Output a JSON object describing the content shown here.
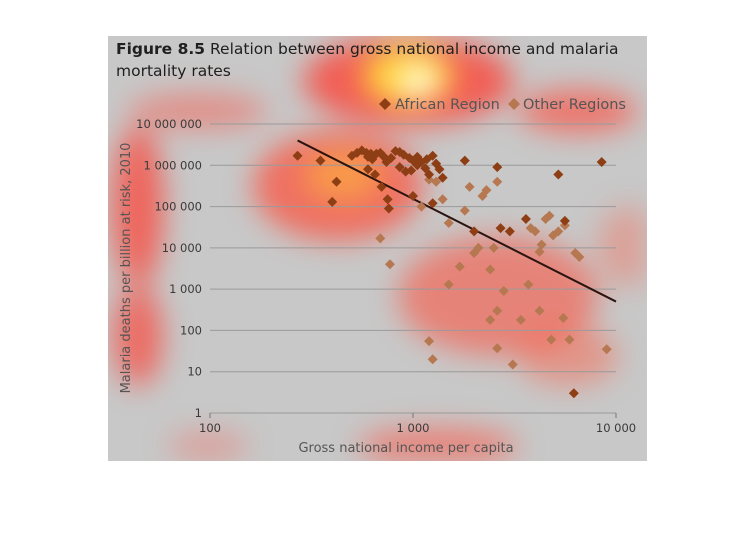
{
  "figure": {
    "label": "Figure 8.5",
    "title": "Relation between gross national income and malaria mortality rates"
  },
  "colors": {
    "african": "#8e3e14",
    "other": "#b67850",
    "trendline": "#2b1410",
    "panel_bg": "#c8c8c8"
  },
  "chart_data": {
    "type": "scatter",
    "xlabel": "Gross national income per capita",
    "ylabel": "Malaria deaths per billion at risk, 2010",
    "xscale": "log",
    "yscale": "log",
    "xlim": [
      100,
      10000
    ],
    "ylim": [
      1,
      10000000
    ],
    "x_ticks": [
      {
        "value": 100,
        "label": "100"
      },
      {
        "value": 1000,
        "label": "1 000"
      },
      {
        "value": 10000,
        "label": "10 000"
      }
    ],
    "y_ticks": [
      {
        "value": 1,
        "label": "1"
      },
      {
        "value": 10,
        "label": "10"
      },
      {
        "value": 100,
        "label": "100"
      },
      {
        "value": 1000,
        "label": "1 000"
      },
      {
        "value": 10000,
        "label": "10 000"
      },
      {
        "value": 100000,
        "label": "100 000"
      },
      {
        "value": 1000000,
        "label": "1 000 000"
      },
      {
        "value": 10000000,
        "label": "10 000 000"
      }
    ],
    "grid": "horizontal",
    "legend_position": "top-right",
    "trendline": {
      "x": [
        270,
        10000
      ],
      "y": [
        4000000,
        500
      ]
    },
    "series": [
      {
        "name": "African Region",
        "points": [
          [
            270,
            1700000
          ],
          [
            350,
            1300000
          ],
          [
            420,
            400000
          ],
          [
            400,
            130000
          ],
          [
            500,
            1700000
          ],
          [
            530,
            2000000
          ],
          [
            560,
            2300000
          ],
          [
            590,
            2000000
          ],
          [
            620,
            1900000
          ],
          [
            600,
            1600000
          ],
          [
            630,
            1400000
          ],
          [
            660,
            1900000
          ],
          [
            690,
            2000000
          ],
          [
            720,
            1600000
          ],
          [
            740,
            1200000
          ],
          [
            780,
            1500000
          ],
          [
            820,
            2200000
          ],
          [
            860,
            2100000
          ],
          [
            900,
            1800000
          ],
          [
            960,
            1500000
          ],
          [
            1000,
            1300000
          ],
          [
            1050,
            1600000
          ],
          [
            1100,
            1200000
          ],
          [
            1170,
            1400000
          ],
          [
            1250,
            1700000
          ],
          [
            1300,
            1100000
          ],
          [
            1350,
            800000
          ],
          [
            600,
            800000
          ],
          [
            650,
            600000
          ],
          [
            700,
            300000
          ],
          [
            750,
            150000
          ],
          [
            760,
            90000
          ],
          [
            860,
            900000
          ],
          [
            920,
            700000
          ],
          [
            980,
            750000
          ],
          [
            1050,
            1000000
          ],
          [
            1150,
            850000
          ],
          [
            1200,
            600000
          ],
          [
            1400,
            500000
          ],
          [
            1800,
            1300000
          ],
          [
            1000,
            180000
          ],
          [
            2000,
            25000
          ],
          [
            2600,
            900000
          ],
          [
            2700,
            30000
          ],
          [
            3000,
            25000
          ],
          [
            3600,
            50000
          ],
          [
            5200,
            600000
          ],
          [
            5600,
            45000
          ],
          [
            6200,
            3
          ],
          [
            8500,
            1200000
          ],
          [
            1250,
            120000
          ]
        ]
      },
      {
        "name": "Other Regions",
        "points": [
          [
            690,
            17000
          ],
          [
            770,
            4000
          ],
          [
            1200,
            450000
          ],
          [
            1300,
            400000
          ],
          [
            1400,
            150000
          ],
          [
            1100,
            100000
          ],
          [
            1500,
            40000
          ],
          [
            1700,
            3500
          ],
          [
            1500,
            1300
          ],
          [
            1800,
            80000
          ],
          [
            1900,
            300000
          ],
          [
            2000,
            7500
          ],
          [
            2100,
            10000
          ],
          [
            2200,
            180000
          ],
          [
            2300,
            250000
          ],
          [
            2400,
            3000
          ],
          [
            2500,
            10000
          ],
          [
            2600,
            400000
          ],
          [
            2800,
            900
          ],
          [
            2400,
            180
          ],
          [
            2600,
            300
          ],
          [
            2600,
            37
          ],
          [
            3100,
            15
          ],
          [
            3400,
            180
          ],
          [
            3700,
            1300
          ],
          [
            3800,
            30000
          ],
          [
            4000,
            25000
          ],
          [
            4200,
            8000
          ],
          [
            4300,
            12000
          ],
          [
            4500,
            50000
          ],
          [
            4700,
            60000
          ],
          [
            4900,
            20000
          ],
          [
            5200,
            25000
          ],
          [
            5600,
            35000
          ],
          [
            5500,
            200
          ],
          [
            5900,
            60
          ],
          [
            6300,
            7500
          ],
          [
            6600,
            6000
          ],
          [
            4200,
            300
          ],
          [
            4800,
            60
          ],
          [
            9000,
            35
          ],
          [
            1200,
            55
          ],
          [
            1250,
            20
          ]
        ]
      }
    ]
  }
}
